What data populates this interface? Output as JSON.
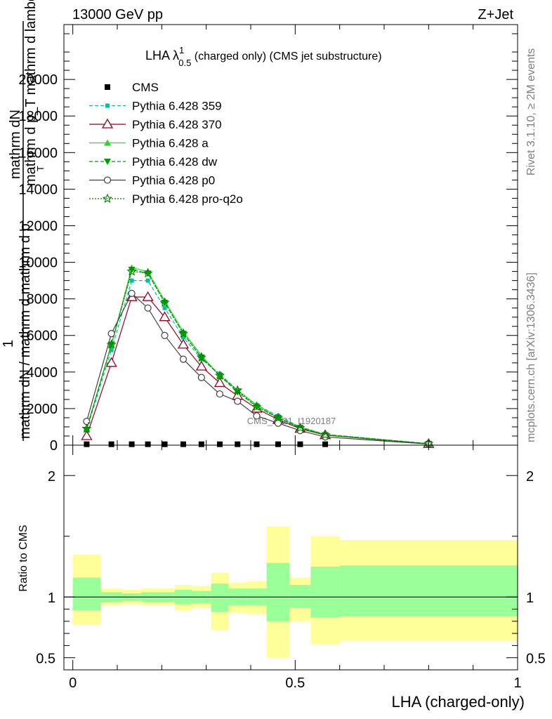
{
  "header": {
    "energy": "13000 GeV pp",
    "process": "Z+Jet",
    "plot_title_main": "LHA λ",
    "plot_title_sup": "1",
    "plot_title_sub": "0.5",
    "plot_title_rest": " (charged only) (CMS jet substructure)",
    "watermark": "CMS_2021_I1920187"
  },
  "sidebar": {
    "rivet_label": "Rivet 3.1.10, ≥ 2M events",
    "mcplots_label": "mcplots.cern.ch [arXiv:1306.3436]"
  },
  "axes": {
    "main_ylabel_top": "mathrm dN",
    "main_ylabel_top2": "mathrm d p_T mathrm d lambda",
    "main_ylabel_sub": "T",
    "main_ylabel_one": "1",
    "main_ylabel_bottom": "mathrm dN / mathrm d mathrm d p",
    "ratio_ylabel": "Ratio to CMS",
    "xlabel": "LHA (charged-only)"
  },
  "chart_data": [
    {
      "type": "line",
      "x_bin_edges": [
        0.0,
        0.0625,
        0.1111,
        0.1538,
        0.1837,
        0.2295,
        0.2673,
        0.3111,
        0.3496,
        0.3911,
        0.4356,
        0.4875,
        0.5349,
        0.6,
        1.0
      ],
      "x": [
        0.0312,
        0.0868,
        0.1325,
        0.1688,
        0.2066,
        0.2484,
        0.2892,
        0.3304,
        0.3704,
        0.4134,
        0.4616,
        0.5112,
        0.5675,
        0.8
      ],
      "ylim": [
        0,
        23000
      ],
      "yticks": [
        0,
        2000,
        4000,
        6000,
        8000,
        10000,
        12000,
        14000,
        16000,
        18000,
        20000
      ],
      "ytick_labels": [
        "0",
        "2000",
        "4000",
        "6000",
        "8000",
        "10000",
        "12000",
        "14000",
        "16000",
        "18000",
        "20000"
      ],
      "xlim": [
        -0.02,
        1.0
      ],
      "legend_position": "top-left",
      "series": [
        {
          "name": "CMS",
          "color": "#000000",
          "marker": "square",
          "values": [
            50,
            50,
            50,
            50,
            50,
            50,
            50,
            50,
            50,
            50,
            50,
            50,
            50,
            50
          ]
        },
        {
          "name": "Pythia 6.428 359",
          "color": "#00c0a0",
          "marker": "small-square",
          "dash": "dashed",
          "values": [
            850,
            5200,
            9000,
            9000,
            7500,
            5900,
            4700,
            3900,
            3000,
            2200,
            1600,
            1000,
            600,
            80
          ]
        },
        {
          "name": "Pythia 6.428 370",
          "color": "#9a0020",
          "marker": "open-triangle",
          "dash": "solid",
          "values": [
            500,
            4500,
            8100,
            8100,
            7000,
            5500,
            4300,
            3400,
            2700,
            2000,
            1400,
            900,
            550,
            70
          ]
        },
        {
          "name": "Pythia 6.428 a",
          "color": "#22dd22",
          "marker": "filled-triangle",
          "dash": "solid",
          "values": [
            900,
            5500,
            9700,
            9500,
            7900,
            6200,
            4900,
            3800,
            3000,
            2200,
            1500,
            1000,
            580,
            80
          ]
        },
        {
          "name": "Pythia 6.428 dw",
          "color": "#00a000",
          "marker": "filled-down-triangle",
          "dash": "dashed",
          "values": [
            850,
            5500,
            9600,
            9400,
            7800,
            6100,
            4800,
            3800,
            2900,
            2100,
            1500,
            950,
            560,
            80
          ]
        },
        {
          "name": "Pythia 6.428 p0",
          "color": "#404040",
          "marker": "open-circle",
          "dash": "solid",
          "values": [
            1300,
            6100,
            8300,
            7500,
            6000,
            4700,
            3700,
            2800,
            2400,
            1600,
            1200,
            800,
            450,
            60
          ]
        },
        {
          "name": "Pythia 6.428 pro-q2o",
          "color": "#008000",
          "marker": "open-star",
          "dash": "dotted",
          "values": [
            900,
            5500,
            9500,
            9400,
            7800,
            6100,
            4800,
            3800,
            3000,
            2100,
            1500,
            950,
            560,
            80
          ]
        }
      ]
    },
    {
      "type": "area",
      "ylabel": "Ratio to CMS",
      "ylim": [
        0.4,
        2.25
      ],
      "yticks": [
        0.5,
        1,
        2
      ],
      "ytick_labels": [
        "0.5",
        "1",
        "2"
      ],
      "xticks": [
        0,
        0.5,
        1
      ],
      "xtick_labels": [
        "0",
        "0.5",
        "1"
      ],
      "x_bin_edges": [
        0.0,
        0.0625,
        0.1111,
        0.1538,
        0.1837,
        0.2295,
        0.2673,
        0.3111,
        0.3496,
        0.3911,
        0.4356,
        0.4875,
        0.5349,
        0.6,
        1.0
      ],
      "outer_band_low": [
        0.77,
        0.93,
        0.94,
        0.93,
        0.93,
        0.89,
        0.91,
        0.73,
        0.87,
        0.86,
        0.5,
        0.8,
        0.61,
        0.64
      ],
      "outer_band_high": [
        1.35,
        1.07,
        1.06,
        1.07,
        1.07,
        1.1,
        1.09,
        1.2,
        1.12,
        1.13,
        1.58,
        1.16,
        1.5,
        1.47
      ],
      "inner_band_low": [
        0.89,
        0.96,
        0.97,
        0.96,
        0.96,
        0.94,
        0.95,
        0.88,
        0.93,
        0.93,
        0.8,
        0.91,
        0.83,
        0.84
      ],
      "inner_band_high": [
        1.16,
        1.04,
        1.03,
        1.04,
        1.04,
        1.06,
        1.05,
        1.11,
        1.07,
        1.07,
        1.28,
        1.1,
        1.25,
        1.26
      ],
      "outer_color": "#ffff99",
      "inner_color": "#99ff99",
      "reference_value": 1
    }
  ]
}
